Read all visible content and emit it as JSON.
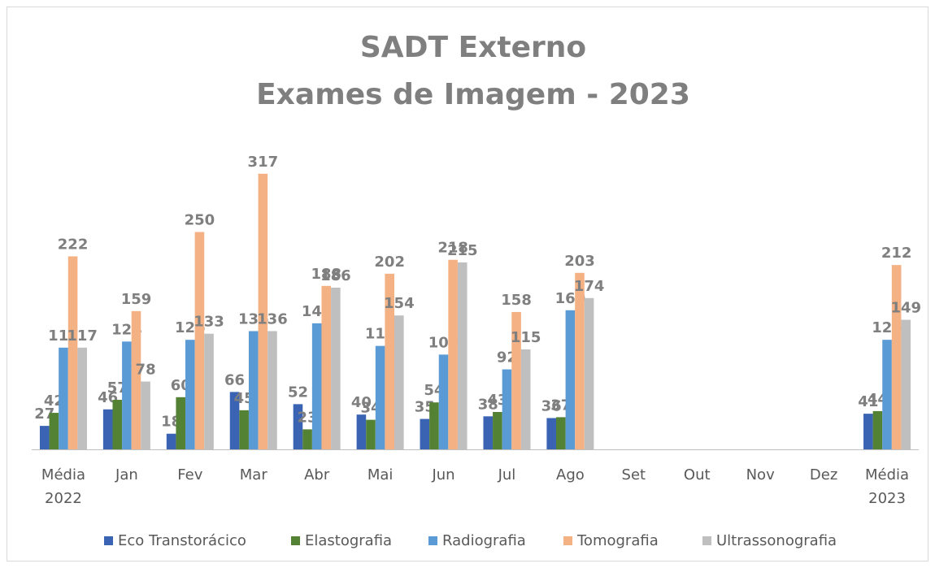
{
  "chart_data": {
    "type": "bar",
    "title": [
      "SADT Externo",
      "Exames de Imagem - 2023"
    ],
    "categories": [
      "Média 2022",
      "Jan",
      "Fev",
      "Mar",
      "Abr",
      "Mai",
      "Jun",
      "Jul",
      "Ago",
      "Set",
      "Out",
      "Nov",
      "Dez",
      "Média 2023"
    ],
    "series": [
      {
        "name": "Eco Transtorácico",
        "color": "#3a63b4",
        "values": [
          27,
          46,
          18,
          66,
          52,
          40,
          35,
          38,
          36,
          null,
          null,
          null,
          null,
          41
        ]
      },
      {
        "name": "Elastografia",
        "color": "#548235",
        "values": [
          42,
          57,
          60,
          45,
          23,
          34,
          54,
          43,
          37,
          null,
          null,
          null,
          null,
          44
        ]
      },
      {
        "name": "Radiografia",
        "color": "#5b9bd5",
        "values": [
          117,
          124,
          126,
          136,
          145,
          119,
          109,
          92,
          160,
          null,
          null,
          null,
          null,
          126
        ]
      },
      {
        "name": "Tomografia",
        "color": "#f4b183",
        "values": [
          222,
          159,
          250,
          317,
          188,
          202,
          218,
          158,
          203,
          null,
          null,
          null,
          null,
          212
        ]
      },
      {
        "name": "Ultrassonografia",
        "color": "#bfbfbf",
        "values": [
          117,
          78,
          133,
          136,
          186,
          154,
          215,
          115,
          174,
          null,
          null,
          null,
          null,
          149
        ]
      }
    ],
    "legend": "bottom"
  }
}
